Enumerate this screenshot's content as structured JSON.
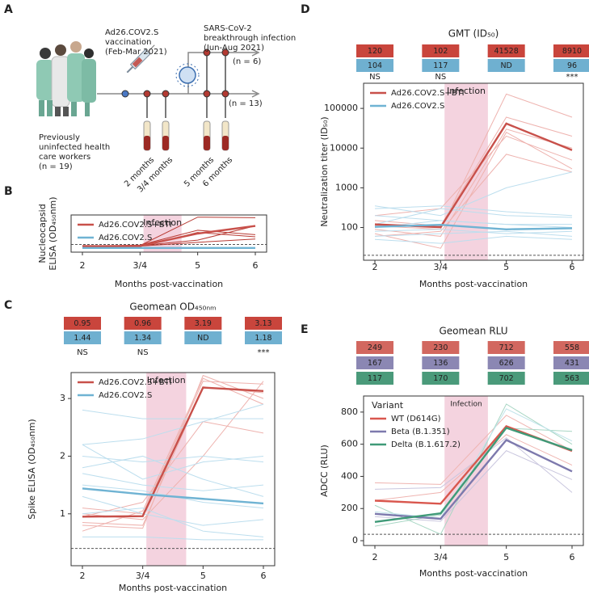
{
  "diagram": {
    "panel_label": "A",
    "vaccination": [
      "Ad26.COV2.S",
      "vaccination",
      "(Feb-Mar 2021)"
    ],
    "infection": [
      "SARS-CoV-2",
      "breakthrough infection",
      "(Jun-Aug 2021)"
    ],
    "infected_n": "(n = 6)",
    "uninfected_n": "(n = 13)",
    "cohort": [
      "Previously",
      "uninfected health",
      "care workers",
      "(n = 19)"
    ],
    "timepoints": [
      "2 months",
      "3/4 months",
      "5 months",
      "6 months"
    ]
  },
  "chart_data": [
    {
      "type": "line",
      "panel_label": "B",
      "xlabel": "Months post-vaccination",
      "ylabel": [
        "Nucleocapsid",
        "ELISA (OD₄₅₀nm)"
      ],
      "categories": [
        "2",
        "3/4",
        "5",
        "6"
      ],
      "ylim": [
        -0.3,
        3.1
      ],
      "yticks": [],
      "threshold": 0.4,
      "annotation": "Infection",
      "legend": "top-left",
      "series": [
        {
          "name": "Ad26.COV2.S+BTI",
          "color": "#c8504a",
          "values": [
            0.22,
            0.28,
            1.4,
            2.1
          ]
        },
        {
          "name": "Ad26.COV2.S",
          "color": "#6fb3d3",
          "values": [
            0.08,
            0.08,
            0.08,
            0.08
          ]
        }
      ],
      "individuals": [
        {
          "color": "#b83a33",
          "values": [
            0.3,
            0.3,
            2.9,
            2.85
          ]
        },
        {
          "color": "#b83a33",
          "values": [
            0.2,
            0.35,
            1.7,
            1.3
          ]
        },
        {
          "color": "#b83a33",
          "values": [
            0.25,
            0.3,
            0.8,
            2.1
          ]
        },
        {
          "color": "#b83a33",
          "values": [
            0.15,
            0.2,
            1.5,
            1.1
          ]
        },
        {
          "color": "#b83a33",
          "values": [
            0.3,
            0.25,
            0.6,
            0.9
          ]
        },
        {
          "color": "#8cc4dd",
          "values": [
            0.1,
            0.1,
            0.1,
            0.1
          ]
        },
        {
          "color": "#8cc4dd",
          "values": [
            0.05,
            0.05,
            0.05,
            0.05
          ]
        }
      ]
    },
    {
      "type": "line",
      "panel_label": "C",
      "xlabel": "Months post-vaccination",
      "ylabel": [
        "Spike ELISA (OD₄₅₀nm)"
      ],
      "categories": [
        "2",
        "3/4",
        "5",
        "6"
      ],
      "ylim": [
        0.1,
        3.45
      ],
      "yticks": [
        1,
        2,
        3
      ],
      "threshold": 0.4,
      "annotation": "Infection",
      "legend": "top-left",
      "table": {
        "title": "Geomean OD₄₅₀ₙₘ",
        "rows": [
          {
            "color": "#c9453c",
            "cells": [
              0.95,
              0.96,
              3.19,
              3.13
            ]
          },
          {
            "color": "#6fb0d0",
            "cells": [
              1.44,
              1.34,
              "ND",
              1.18
            ]
          }
        ],
        "significance": [
          "NS",
          "NS",
          null,
          "***"
        ]
      },
      "series": [
        {
          "name": "Ad26.COV2.S+BTI",
          "color": "#c8504a",
          "values": [
            0.95,
            0.96,
            3.19,
            3.13
          ]
        },
        {
          "name": "Ad26.COV2.S",
          "color": "#6fb3d3",
          "values": [
            1.44,
            1.34,
            1.26,
            1.18
          ]
        }
      ],
      "individuals": [
        {
          "color": "#eeb2ae",
          "values": [
            0.8,
            0.75,
            3.4,
            3.0
          ]
        },
        {
          "color": "#eeb2ae",
          "values": [
            1.1,
            1.0,
            3.3,
            3.25
          ]
        },
        {
          "color": "#eeb2ae",
          "values": [
            0.95,
            1.2,
            2.6,
            2.4
          ]
        },
        {
          "color": "#eeb2ae",
          "values": [
            0.85,
            0.8,
            3.2,
            3.1
          ]
        },
        {
          "color": "#eeb2ae",
          "values": [
            1.0,
            0.9,
            2.0,
            3.3
          ]
        },
        {
          "color": "#eeb2ae",
          "values": [
            0.7,
            1.05,
            3.35,
            2.9
          ]
        },
        {
          "color": "#bcdeee",
          "values": [
            2.8,
            2.65,
            2.65,
            2.65
          ]
        },
        {
          "color": "#bcdeee",
          "values": [
            2.2,
            2.3,
            2.6,
            2.9
          ]
        },
        {
          "color": "#bcdeee",
          "values": [
            2.0,
            1.9,
            2.0,
            1.9
          ]
        },
        {
          "color": "#bcdeee",
          "values": [
            1.7,
            1.5,
            1.4,
            1.5
          ]
        },
        {
          "color": "#bcdeee",
          "values": [
            1.5,
            1.4,
            1.2,
            1.1
          ]
        },
        {
          "color": "#bcdeee",
          "values": [
            1.3,
            1.0,
            0.8,
            0.9
          ]
        },
        {
          "color": "#bcdeee",
          "values": [
            1.0,
            1.1,
            0.7,
            0.6
          ]
        },
        {
          "color": "#bcdeee",
          "values": [
            0.6,
            0.6,
            0.55,
            0.55
          ]
        },
        {
          "color": "#bcdeee",
          "values": [
            2.2,
            1.6,
            1.9,
            2.0
          ]
        },
        {
          "color": "#bcdeee",
          "values": [
            1.8,
            2.0,
            1.6,
            1.3
          ]
        }
      ]
    },
    {
      "type": "line",
      "panel_label": "D",
      "xlabel": "Months post-vaccination",
      "ylabel": [
        "Neutralization titer (ID₅₀)"
      ],
      "categories": [
        "2",
        "3/4",
        "5",
        "6"
      ],
      "log": true,
      "ylim": [
        15,
        430000
      ],
      "yticks": [
        100,
        1000,
        10000,
        100000
      ],
      "threshold": 20,
      "annotation": "Infection",
      "legend": "top-left",
      "table": {
        "title": "GMT (ID₅₀)",
        "rows": [
          {
            "color": "#c9453c",
            "cells": [
              120,
              102,
              41528,
              8910
            ]
          },
          {
            "color": "#6fb0d0",
            "cells": [
              104,
              117,
              "ND",
              96
            ]
          }
        ],
        "significance": [
          "NS",
          "NS",
          null,
          "***"
        ]
      },
      "series": [
        {
          "name": "Ad26.COV2.S+BTI",
          "color": "#c8504a",
          "values": [
            120,
            102,
            41528,
            8910
          ]
        },
        {
          "name": "Ad26.COV2.S",
          "color": "#6fb3d3",
          "values": [
            104,
            117,
            90,
            96
          ]
        }
      ],
      "individuals": [
        {
          "color": "#eeb2ae",
          "values": [
            110,
            90,
            230000,
            60000
          ]
        },
        {
          "color": "#eeb2ae",
          "values": [
            200,
            300,
            20000,
            5000
          ]
        },
        {
          "color": "#eeb2ae",
          "values": [
            60,
            80,
            7000,
            2500
          ]
        },
        {
          "color": "#eeb2ae",
          "values": [
            150,
            110,
            60000,
            20000
          ]
        },
        {
          "color": "#eeb2ae",
          "values": [
            90,
            60,
            30000,
            10000
          ]
        },
        {
          "color": "#eeb2ae",
          "values": [
            70,
            30,
            25000,
            3000
          ]
        },
        {
          "color": "#bcdeee",
          "values": [
            300,
            350,
            250,
            200
          ]
        },
        {
          "color": "#bcdeee",
          "values": [
            200,
            150,
            120,
            120
          ]
        },
        {
          "color": "#bcdeee",
          "values": [
            100,
            150,
            120,
            100
          ]
        },
        {
          "color": "#bcdeee",
          "values": [
            60,
            70,
            80,
            60
          ]
        },
        {
          "color": "#bcdeee",
          "values": [
            50,
            40,
            60,
            50
          ]
        },
        {
          "color": "#bcdeee",
          "values": [
            350,
            200,
            1000,
            2500
          ]
        },
        {
          "color": "#bcdeee",
          "values": [
            120,
            300,
            200,
            180
          ]
        },
        {
          "color": "#bcdeee",
          "values": [
            80,
            90,
            70,
            80
          ]
        }
      ]
    },
    {
      "type": "line",
      "panel_label": "E",
      "xlabel": "Months post-vaccination",
      "ylabel": [
        "ADCC (RLU)"
      ],
      "categories": [
        "2",
        "3/4",
        "5",
        "6"
      ],
      "ylim": [
        -30,
        900
      ],
      "yticks": [
        0,
        200,
        400,
        600,
        800
      ],
      "threshold": 40,
      "annotation": "Infection",
      "legend": "top-left",
      "legend_title": "Variant",
      "table": {
        "title": "Geomean RLU",
        "rows": [
          {
            "color": "#d2675f",
            "cells": [
              249,
              230,
              712,
              558
            ]
          },
          {
            "color": "#8b87b3",
            "cells": [
              167,
              136,
              626,
              431
            ]
          },
          {
            "color": "#4a9a7a",
            "cells": [
              117,
              170,
              702,
              563
            ]
          }
        ]
      },
      "series": [
        {
          "name": "WT (D614G)",
          "color": "#d9574e",
          "values": [
            249,
            230,
            712,
            558
          ]
        },
        {
          "name": "Beta (B.1.351)",
          "color": "#7d79ad",
          "values": [
            167,
            136,
            626,
            431
          ]
        },
        {
          "name": "Delta (B.1.617.2)",
          "color": "#3f9a78",
          "values": [
            117,
            170,
            702,
            563
          ]
        }
      ],
      "individuals": [
        {
          "color": "#efb4b0",
          "values": [
            360,
            350,
            780,
            560
          ]
        },
        {
          "color": "#efb4b0",
          "values": [
            250,
            300,
            660,
            470
          ]
        },
        {
          "color": "#c9c6de",
          "values": [
            320,
            330,
            640,
            300
          ]
        },
        {
          "color": "#c9c6de",
          "values": [
            150,
            120,
            560,
            380
          ]
        },
        {
          "color": "#a8d6c4",
          "values": [
            220,
            40,
            850,
            600
          ]
        },
        {
          "color": "#a8d6c4",
          "values": [
            90,
            160,
            700,
            680
          ]
        },
        {
          "color": "#bfe3ea",
          "values": [
            180,
            140,
            820,
            620
          ]
        }
      ]
    }
  ]
}
